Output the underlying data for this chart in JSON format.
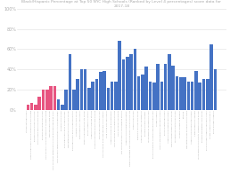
{
  "title": "Black/Hispanic Percentage at Top 50 NYC High Schools (Ranked by Level 4 percentages) score data for 2017-18",
  "bar_colors": [
    "#e75480",
    "#e75480",
    "#e75480",
    "#e75480",
    "#e75480",
    "#e75480",
    "#e75480",
    "#e75480",
    "#4472c4",
    "#4472c4",
    "#4472c4",
    "#4472c4",
    "#4472c4",
    "#4472c4",
    "#4472c4",
    "#4472c4",
    "#4472c4",
    "#4472c4",
    "#4472c4",
    "#4472c4",
    "#4472c4",
    "#4472c4",
    "#4472c4",
    "#4472c4",
    "#4472c4",
    "#4472c4",
    "#4472c4",
    "#4472c4",
    "#4472c4",
    "#4472c4",
    "#4472c4",
    "#4472c4",
    "#4472c4",
    "#4472c4",
    "#4472c4",
    "#4472c4",
    "#4472c4",
    "#4472c4",
    "#4472c4",
    "#4472c4",
    "#4472c4",
    "#4472c4",
    "#4472c4",
    "#4472c4",
    "#4472c4",
    "#4472c4",
    "#4472c4",
    "#4472c4",
    "#4472c4",
    "#4472c4"
  ],
  "values": [
    5,
    7,
    5,
    13,
    20,
    20,
    23,
    23,
    10,
    5,
    20,
    55,
    20,
    30,
    40,
    40,
    22,
    28,
    30,
    37,
    38,
    22,
    28,
    28,
    68,
    50,
    52,
    55,
    60,
    33,
    35,
    43,
    28,
    27,
    45,
    28,
    45,
    55,
    44,
    33,
    32,
    32,
    28,
    28,
    38,
    27,
    30,
    30,
    65,
    40
  ],
  "labels": [
    "Stuyvesant High School",
    "Queens High School for the Sciences at York College",
    "The Bronx High School of Science",
    "Staten Island Technical High School",
    "Brooklyn Technical High School",
    "High School of American Studies at Lehman College",
    "Townsend Harris High School",
    "High School for Mathematics Science and Engineering at CCNY",
    "High School of Telecommunication Arts and Technology",
    "Brooklyn Latin School",
    "Bard High School Early College Queens",
    "Manhattan/Hunter Science High School",
    "Bard High School Early College Manhattan",
    "Gramercy Arts High School",
    "Elmont Memorial High School",
    "Professional Performing Arts School",
    "Bronx Academy of Letters",
    "Academy of American Studies",
    "Collegiate Institute for Math and Science",
    "Eleanor Roosevelt High School",
    "High School for Dual Language and Asian Studies",
    "Long Island City High School",
    "Academy of Finance and Enterprise",
    "High School for Environmental Studies",
    "High School for Civil Rights",
    "NYC Lab High School for Collaborative Studies",
    "Academy of Collaborative Education",
    "Fiorello LaGuardia High School of Music Art Performing Arts",
    "Beacon High School",
    "Edward R. Murrow High School",
    "Channel View School for Research",
    "Brooklyn College Academy",
    "Young Womens Leadership School",
    "Bronx Community College Preparatory High School",
    "Village Academy",
    "IT-NYC Late Elementary Secondary School",
    "Bronx Theatre High School",
    "Academy of Innovative Technology",
    "Franklin Delano Roosevelt High School",
    "Williamsburg Charter High School",
    "College Academy at Broward",
    "CitiWide",
    "Manhattan Bronx Brooklyn Staten Island",
    "Academy of Environmental Science",
    "CTeen Leadership Academy",
    "Young Womens Community Leadership High School",
    "Brooklyn Preparatory High School",
    "Bronx Success Academy Secondary School",
    "Village Academy School No. 6",
    "Bronx Success Academy"
  ],
  "ylim": [
    0,
    100
  ],
  "ytick_labels": [
    "0%",
    "20%",
    "40%",
    "60%",
    "80%",
    "100%"
  ],
  "ytick_values": [
    0,
    20,
    40,
    60,
    80,
    100
  ],
  "background_color": "#ffffff",
  "grid_color": "#e0e0e0"
}
